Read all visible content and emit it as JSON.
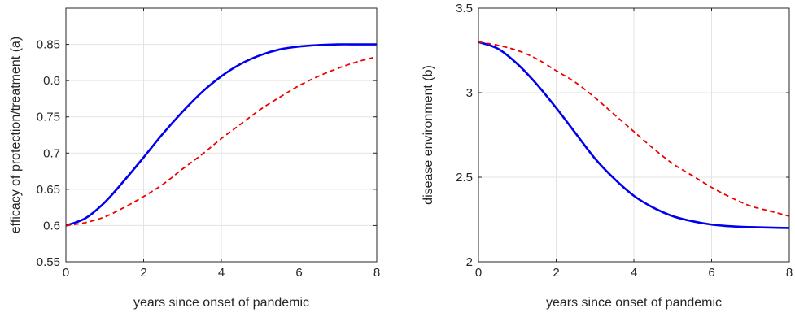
{
  "chart_data": [
    {
      "type": "line",
      "title": "",
      "xlabel": "years since onset of pandemic",
      "ylabel": "efficacy of protection/treatment (a)",
      "xlim": [
        0,
        8
      ],
      "ylim": [
        0.55,
        0.9
      ],
      "xticks": [
        "0",
        "2",
        "4",
        "6",
        "8"
      ],
      "yticks": [
        "0.55",
        "0.6",
        "0.65",
        "0.7",
        "0.75",
        "0.8",
        "0.85"
      ],
      "grid": true,
      "x": [
        0,
        0.5,
        1,
        1.5,
        2,
        2.5,
        3,
        3.5,
        4,
        4.5,
        5,
        5.5,
        6,
        6.5,
        7,
        7.5,
        8
      ],
      "series": [
        {
          "color": "#0000ee",
          "style": "solid",
          "values": [
            0.6,
            0.61,
            0.632,
            0.662,
            0.694,
            0.727,
            0.757,
            0.784,
            0.806,
            0.823,
            0.835,
            0.843,
            0.847,
            0.849,
            0.85,
            0.85,
            0.85
          ]
        },
        {
          "color": "#ee0000",
          "style": "dashed",
          "values": [
            0.6,
            0.604,
            0.612,
            0.625,
            0.64,
            0.657,
            0.678,
            0.698,
            0.72,
            0.74,
            0.76,
            0.777,
            0.793,
            0.806,
            0.817,
            0.826,
            0.833
          ]
        }
      ]
    },
    {
      "type": "line",
      "title": "",
      "xlabel": "years since onset of pandemic",
      "ylabel": "disease environment (b)",
      "xlim": [
        0,
        8
      ],
      "ylim": [
        2,
        3.5
      ],
      "xticks": [
        "0",
        "2",
        "4",
        "6",
        "8"
      ],
      "yticks": [
        "2",
        "2.5",
        "3",
        "3.5"
      ],
      "grid": true,
      "x": [
        0,
        0.5,
        1,
        1.5,
        2,
        2.5,
        3,
        3.5,
        4,
        4.5,
        5,
        5.5,
        6,
        6.5,
        7,
        7.5,
        8
      ],
      "series": [
        {
          "color": "#0000ee",
          "style": "solid",
          "values": [
            3.3,
            3.26,
            3.17,
            3.05,
            2.91,
            2.76,
            2.61,
            2.49,
            2.39,
            2.32,
            2.27,
            2.24,
            2.22,
            2.21,
            2.205,
            2.202,
            2.2
          ]
        },
        {
          "color": "#ee0000",
          "style": "dashed",
          "values": [
            3.3,
            3.28,
            3.25,
            3.2,
            3.13,
            3.06,
            2.97,
            2.87,
            2.77,
            2.67,
            2.58,
            2.51,
            2.44,
            2.38,
            2.33,
            2.3,
            2.27
          ]
        }
      ]
    }
  ]
}
